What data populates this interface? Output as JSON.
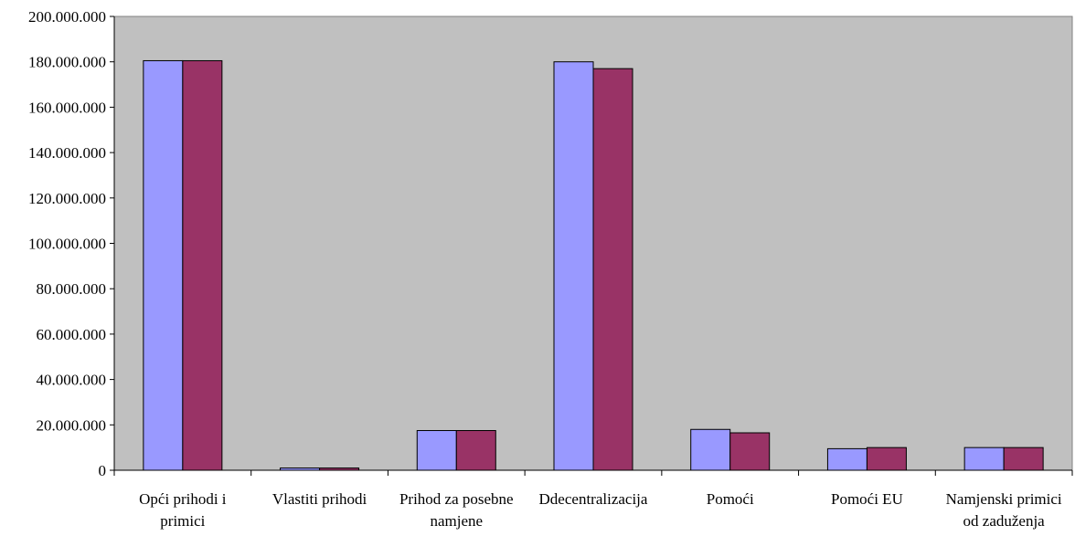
{
  "chart_data": {
    "type": "bar",
    "title": "",
    "xlabel": "",
    "ylabel": "",
    "ylim": [
      0,
      200000000
    ],
    "yticks": [
      0,
      20000000,
      40000000,
      60000000,
      80000000,
      100000000,
      120000000,
      140000000,
      160000000,
      180000000,
      200000000
    ],
    "ytick_labels": [
      "0",
      "20.000.000",
      "40.000.000",
      "60.000.000",
      "80.000.000",
      "100.000.000",
      "120.000.000",
      "140.000.000",
      "160.000.000",
      "180.000.000",
      "200.000.000"
    ],
    "categories": [
      [
        "Opći prihodi i",
        "primici"
      ],
      [
        "Vlastiti prihodi"
      ],
      [
        "Prihod za posebne",
        "namjene"
      ],
      [
        "Ddecentralizacija"
      ],
      [
        "Pomoći"
      ],
      [
        "Pomoći EU"
      ],
      [
        "Namjenski primici",
        "od zaduženja"
      ]
    ],
    "series": [
      {
        "color": "#9999ff",
        "values": [
          180500000,
          1000000,
          17500000,
          180000000,
          18000000,
          9500000,
          10000000
        ]
      },
      {
        "color": "#993366",
        "values": [
          180500000,
          1000000,
          17500000,
          177000000,
          16500000,
          10000000,
          10000000
        ]
      }
    ],
    "plot_background": "#c0c0c0",
    "grid": false,
    "legend": "none"
  }
}
